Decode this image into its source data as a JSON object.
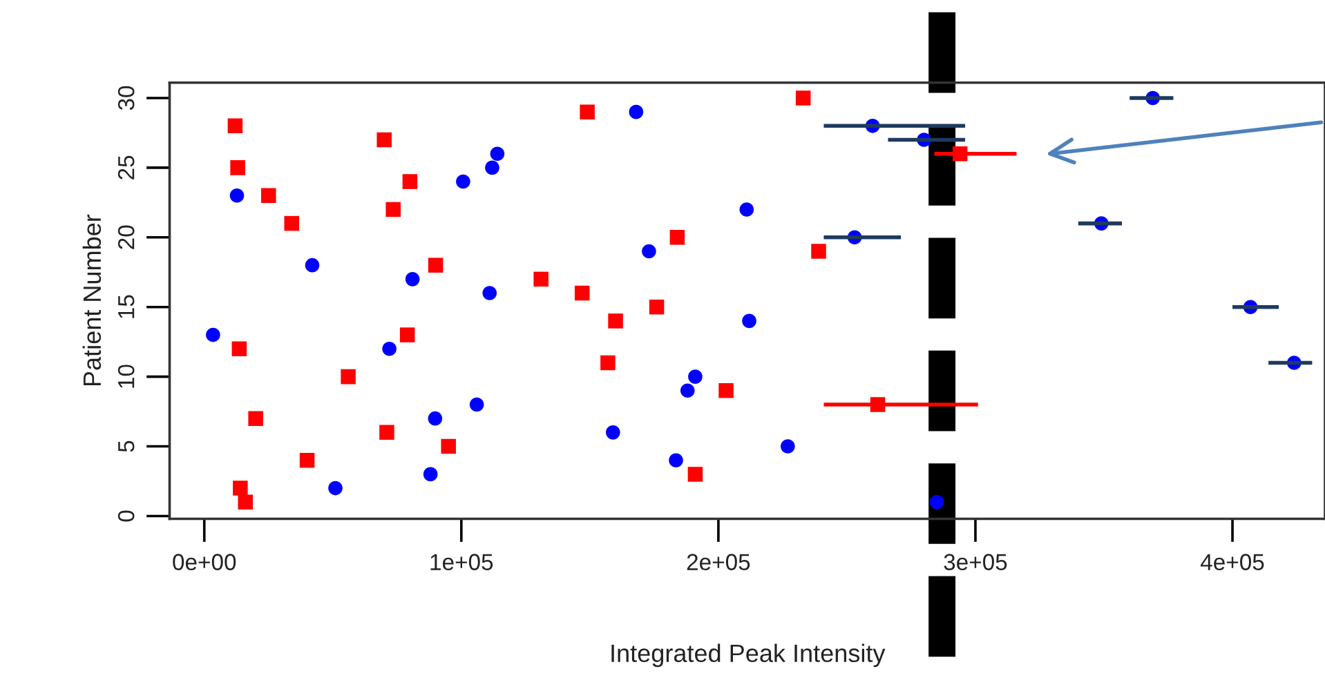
{
  "chart_data": {
    "type": "scatter",
    "xlabel": "Integrated Peak Intensity",
    "ylabel": "Patient Number",
    "xlim": [
      -13500,
      436000
    ],
    "ylim": [
      -0.2,
      31.1
    ],
    "xticks": [
      {
        "value": 0,
        "label": "0e+00"
      },
      {
        "value": 100000,
        "label": "1e+05"
      },
      {
        "value": 200000,
        "label": "2e+05"
      },
      {
        "value": 300000,
        "label": "3e+05"
      },
      {
        "value": 400000,
        "label": "4e+05"
      }
    ],
    "yticks": [
      0,
      5,
      10,
      15,
      20,
      25,
      30
    ],
    "grid": false,
    "legend": false,
    "ref_lines": [
      {
        "axis": "x",
        "value": 287000,
        "color": "#000000",
        "line_style": "dashed"
      }
    ],
    "series": [
      {
        "color": "#ff0000",
        "marker": "square",
        "x": [
          12000,
          13000,
          25000,
          34000,
          70000,
          80000,
          73500,
          90000,
          131000,
          13600,
          56000,
          79000,
          20000,
          71000,
          95000,
          40000,
          14000,
          16000,
          149000,
          233000,
          184000,
          239000,
          147000,
          176000,
          160000,
          157000,
          203000,
          191000,
          262000,
          294000
        ],
        "values": [
          28,
          25,
          23,
          21,
          27,
          24,
          22,
          18,
          17,
          12,
          10,
          13,
          7,
          6,
          5,
          4,
          2,
          1,
          29,
          30,
          20,
          19,
          16,
          15,
          14,
          11,
          9,
          3,
          8,
          26
        ],
        "xerrors": [
          null,
          null,
          null,
          null,
          null,
          null,
          null,
          null,
          null,
          null,
          null,
          null,
          null,
          null,
          null,
          null,
          null,
          null,
          null,
          null,
          null,
          null,
          null,
          null,
          null,
          null,
          null,
          null,
          [
            241000,
            301000
          ],
          [
            284000,
            316000
          ]
        ]
      },
      {
        "color": "#0000ff",
        "marker": "circle",
        "x": [
          12700,
          42000,
          3400,
          72000,
          81000,
          100700,
          112000,
          114000,
          111000,
          106000,
          89800,
          88000,
          51000,
          168000,
          211000,
          173000,
          212000,
          191000,
          188000,
          159000,
          183500,
          227000,
          260000,
          280000,
          253000,
          369000,
          349000,
          407000,
          424000,
          285000
        ],
        "values": [
          23,
          18,
          13,
          12,
          17,
          24,
          25,
          26,
          16,
          8,
          7,
          3,
          2,
          29,
          22,
          19,
          14,
          10,
          9,
          6,
          4,
          5,
          28,
          27,
          20,
          30,
          21,
          15,
          11,
          1
        ],
        "xerrors": [
          null,
          null,
          null,
          null,
          null,
          null,
          null,
          null,
          null,
          null,
          null,
          null,
          null,
          null,
          null,
          null,
          null,
          null,
          null,
          null,
          null,
          null,
          [
            241000,
            296000
          ],
          [
            266000,
            296000
          ],
          [
            241000,
            271000
          ],
          [
            360000,
            377000
          ],
          [
            340000,
            357000
          ],
          [
            400000,
            418000
          ],
          [
            414000,
            431000
          ],
          null
        ]
      }
    ]
  }
}
